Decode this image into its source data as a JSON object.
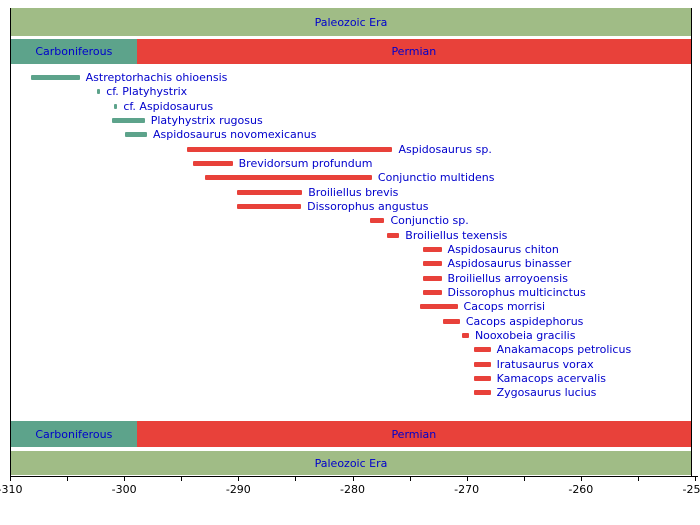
{
  "era": {
    "label": "Paleozoic Era"
  },
  "chart_data": {
    "type": "bar",
    "subtype": "horizontal-range-timeline",
    "title": "",
    "xlabel": "",
    "ylabel": "",
    "grid": false,
    "axis": {
      "min": -310,
      "max": -250,
      "ticks": [
        {
          "t": -310,
          "label": "-310"
        },
        {
          "t": -305,
          "label": ""
        },
        {
          "t": -300,
          "label": "-300"
        },
        {
          "t": -295,
          "label": ""
        },
        {
          "t": -290,
          "label": "-290"
        },
        {
          "t": -285,
          "label": ""
        },
        {
          "t": -280,
          "label": "-280"
        },
        {
          "t": -275,
          "label": ""
        },
        {
          "t": -270,
          "label": "-270"
        },
        {
          "t": -265,
          "label": ""
        },
        {
          "t": -260,
          "label": "-260"
        },
        {
          "t": -255,
          "label": ""
        },
        {
          "t": -250,
          "label": "-250"
        }
      ]
    },
    "periods": [
      {
        "label": "Carboniferous",
        "start": -310,
        "end": -298.9,
        "color": "#5da38b"
      },
      {
        "label": "Permian",
        "start": -298.9,
        "end": -250,
        "color": "#e8413a"
      }
    ],
    "taxa": [
      {
        "name": "Astreptorhachis ohioensis",
        "start": -308.2,
        "end": -303.9,
        "period": "Carboniferous"
      },
      {
        "name": "cf. Platyhystrix",
        "start": -302.4,
        "end": -302.1,
        "period": "Carboniferous"
      },
      {
        "name": "cf. Aspidosaurus",
        "start": -300.9,
        "end": -300.6,
        "period": "Carboniferous"
      },
      {
        "name": "Platyhystrix rugosus",
        "start": -301.1,
        "end": -298.2,
        "period": "Carboniferous"
      },
      {
        "name": "Aspidosaurus novomexicanus",
        "start": -299.9,
        "end": -298.0,
        "period": "Carboniferous"
      },
      {
        "name": "Aspidosaurus sp.",
        "start": -294.5,
        "end": -276.5,
        "period": "Permian"
      },
      {
        "name": "Brevidorsum profundum",
        "start": -294.0,
        "end": -290.5,
        "period": "Permian"
      },
      {
        "name": "Conjunctio multidens",
        "start": -292.9,
        "end": -278.3,
        "period": "Permian"
      },
      {
        "name": "Broiliellus brevis",
        "start": -290.1,
        "end": -284.4,
        "period": "Permian"
      },
      {
        "name": "Dissorophus angustus",
        "start": -290.1,
        "end": -284.5,
        "period": "Permian"
      },
      {
        "name": "Conjunctio sp.",
        "start": -278.5,
        "end": -277.2,
        "period": "Permian"
      },
      {
        "name": "Broiliellus texensis",
        "start": -277.0,
        "end": -275.9,
        "period": "Permian"
      },
      {
        "name": "Aspidosaurus chiton",
        "start": -273.8,
        "end": -272.2,
        "period": "Permian"
      },
      {
        "name": "Aspidosaurus binasser",
        "start": -273.8,
        "end": -272.2,
        "period": "Permian"
      },
      {
        "name": "Broiliellus arroyoensis",
        "start": -273.8,
        "end": -272.2,
        "period": "Permian"
      },
      {
        "name": "Dissorophus multicinctus",
        "start": -273.8,
        "end": -272.2,
        "period": "Permian"
      },
      {
        "name": "Cacops morrisi",
        "start": -274.1,
        "end": -270.8,
        "period": "Permian"
      },
      {
        "name": "Cacops aspidephorus",
        "start": -272.1,
        "end": -270.6,
        "period": "Permian"
      },
      {
        "name": "Nooxobeia gracilis",
        "start": -270.4,
        "end": -269.8,
        "period": "Permian"
      },
      {
        "name": "Anakamacops petrolicus",
        "start": -269.4,
        "end": -267.9,
        "period": "Permian"
      },
      {
        "name": "Iratusaurus vorax",
        "start": -269.4,
        "end": -267.9,
        "period": "Permian"
      },
      {
        "name": "Kamacops acervalis",
        "start": -269.4,
        "end": -267.9,
        "period": "Permian"
      },
      {
        "name": "Zygosaurus lucius",
        "start": -269.4,
        "end": -267.9,
        "period": "Permian"
      }
    ]
  },
  "colors": {
    "era_band": "#a0bc86",
    "carboniferous": "#5da38b",
    "permian": "#e8413a",
    "label_text": "#0000cc",
    "axis": "#000000",
    "background": "#ffffff"
  }
}
